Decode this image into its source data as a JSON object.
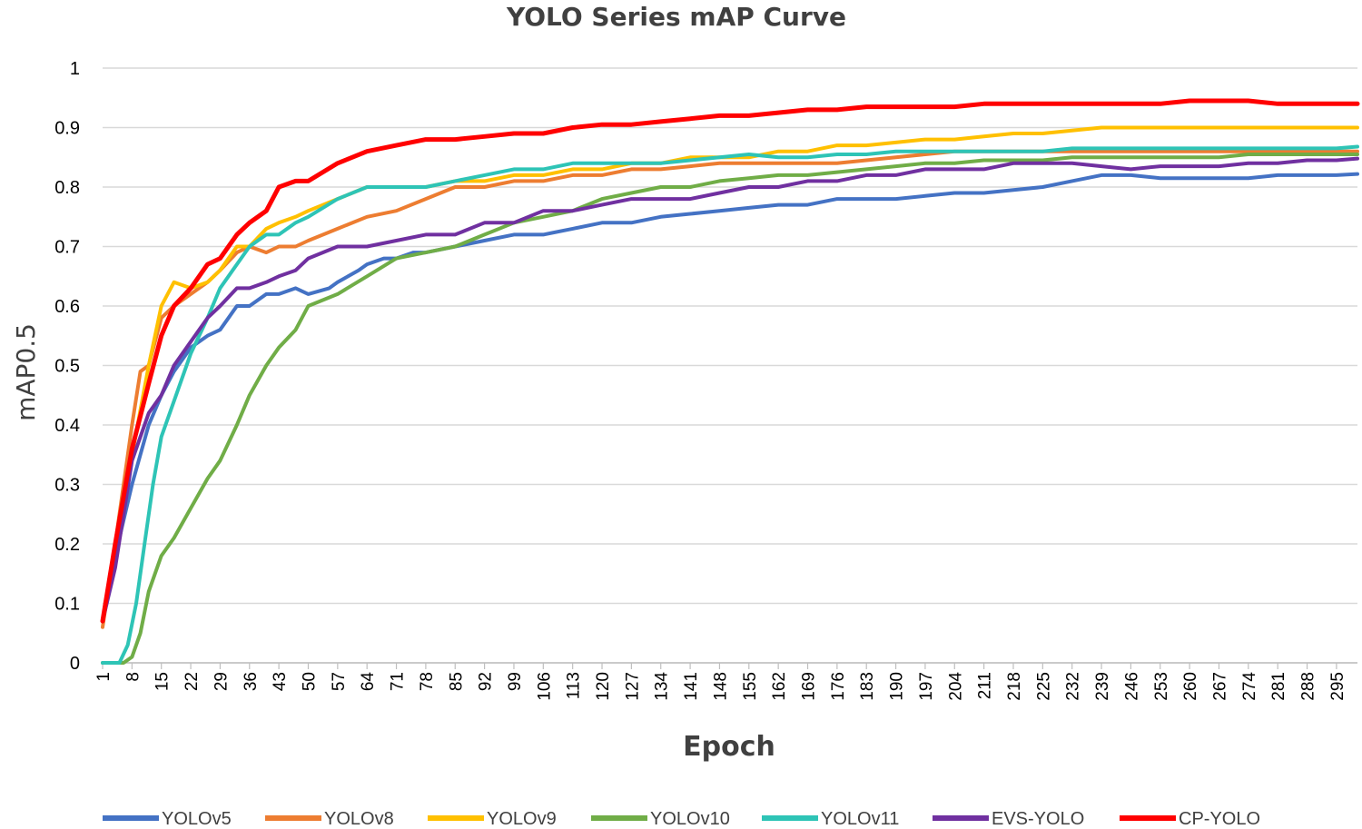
{
  "chart_data": {
    "type": "line",
    "title": "YOLO Series mAP Curve",
    "xlabel": "Epoch",
    "ylabel": "mAP0.5",
    "ylim": [
      0,
      1
    ],
    "xlim": [
      1,
      300
    ],
    "y_ticks": [
      "0",
      "0.1",
      "0.2",
      "0.3",
      "0.4",
      "0.5",
      "0.6",
      "0.7",
      "0.8",
      "0.9",
      "1"
    ],
    "x_ticks": [
      "1",
      "8",
      "15",
      "22",
      "29",
      "36",
      "43",
      "50",
      "57",
      "64",
      "71",
      "78",
      "85",
      "92",
      "99",
      "106",
      "113",
      "120",
      "127",
      "134",
      "141",
      "148",
      "155",
      "162",
      "169",
      "176",
      "183",
      "190",
      "197",
      "204",
      "211",
      "218",
      "225",
      "232",
      "239",
      "246",
      "253",
      "260",
      "267",
      "274",
      "281",
      "288",
      "295"
    ],
    "grid": "horizontal",
    "legend_position": "bottom",
    "series": [
      {
        "name": "YOLOv5",
        "color": "#4472C4",
        "x": [
          1,
          4,
          8,
          12,
          15,
          18,
          22,
          26,
          29,
          33,
          36,
          40,
          43,
          47,
          50,
          55,
          57,
          62,
          64,
          68,
          71,
          75,
          78,
          85,
          92,
          99,
          106,
          113,
          120,
          127,
          134,
          141,
          148,
          155,
          162,
          169,
          176,
          183,
          190,
          197,
          204,
          211,
          218,
          225,
          232,
          239,
          246,
          253,
          260,
          267,
          274,
          281,
          288,
          295,
          300
        ],
        "y": [
          0.07,
          0.18,
          0.3,
          0.4,
          0.45,
          0.49,
          0.53,
          0.55,
          0.56,
          0.6,
          0.6,
          0.62,
          0.62,
          0.63,
          0.62,
          0.63,
          0.64,
          0.66,
          0.67,
          0.68,
          0.68,
          0.69,
          0.69,
          0.7,
          0.71,
          0.72,
          0.72,
          0.73,
          0.74,
          0.74,
          0.75,
          0.755,
          0.76,
          0.765,
          0.77,
          0.77,
          0.78,
          0.78,
          0.78,
          0.785,
          0.79,
          0.79,
          0.795,
          0.8,
          0.81,
          0.82,
          0.82,
          0.815,
          0.815,
          0.815,
          0.815,
          0.82,
          0.82,
          0.82,
          0.822
        ]
      },
      {
        "name": "YOLOv8",
        "color": "#ED7D31",
        "x": [
          1,
          4,
          8,
          10,
          12,
          15,
          18,
          22,
          26,
          29,
          33,
          36,
          40,
          43,
          47,
          50,
          57,
          64,
          71,
          78,
          85,
          92,
          99,
          106,
          113,
          120,
          127,
          134,
          141,
          148,
          155,
          162,
          169,
          176,
          183,
          190,
          197,
          204,
          211,
          218,
          225,
          232,
          239,
          246,
          253,
          260,
          267,
          274,
          281,
          288,
          295,
          300
        ],
        "y": [
          0.06,
          0.2,
          0.4,
          0.49,
          0.5,
          0.58,
          0.6,
          0.62,
          0.64,
          0.66,
          0.69,
          0.7,
          0.69,
          0.7,
          0.7,
          0.71,
          0.73,
          0.75,
          0.76,
          0.78,
          0.8,
          0.8,
          0.81,
          0.81,
          0.82,
          0.82,
          0.83,
          0.83,
          0.835,
          0.84,
          0.84,
          0.84,
          0.84,
          0.84,
          0.845,
          0.85,
          0.855,
          0.86,
          0.86,
          0.86,
          0.86,
          0.86,
          0.86,
          0.86,
          0.86,
          0.86,
          0.86,
          0.86,
          0.86,
          0.86,
          0.86,
          0.86
        ]
      },
      {
        "name": "YOLOv9",
        "color": "#FFC000",
        "x": [
          1,
          4,
          8,
          12,
          15,
          18,
          22,
          26,
          29,
          33,
          36,
          40,
          43,
          47,
          50,
          57,
          64,
          71,
          78,
          85,
          92,
          99,
          106,
          113,
          120,
          127,
          134,
          141,
          148,
          155,
          162,
          169,
          176,
          183,
          190,
          197,
          204,
          211,
          218,
          225,
          232,
          239,
          246,
          253,
          260,
          267,
          274,
          281,
          288,
          295,
          300
        ],
        "y": [
          0.07,
          0.18,
          0.35,
          0.5,
          0.6,
          0.64,
          0.63,
          0.64,
          0.66,
          0.7,
          0.7,
          0.73,
          0.74,
          0.75,
          0.76,
          0.78,
          0.8,
          0.8,
          0.8,
          0.81,
          0.81,
          0.82,
          0.82,
          0.83,
          0.83,
          0.84,
          0.84,
          0.85,
          0.85,
          0.85,
          0.86,
          0.86,
          0.87,
          0.87,
          0.875,
          0.88,
          0.88,
          0.885,
          0.89,
          0.89,
          0.895,
          0.9,
          0.9,
          0.9,
          0.9,
          0.9,
          0.9,
          0.9,
          0.9,
          0.9,
          0.9
        ]
      },
      {
        "name": "YOLOv10",
        "color": "#70AD47",
        "x": [
          1,
          6,
          8,
          10,
          12,
          15,
          18,
          22,
          26,
          29,
          33,
          36,
          40,
          43,
          47,
          50,
          57,
          64,
          71,
          78,
          85,
          92,
          99,
          106,
          113,
          120,
          127,
          134,
          141,
          148,
          155,
          162,
          169,
          176,
          183,
          190,
          197,
          204,
          211,
          218,
          225,
          232,
          239,
          246,
          253,
          260,
          267,
          274,
          281,
          288,
          295,
          300
        ],
        "y": [
          0,
          0,
          0.01,
          0.05,
          0.12,
          0.18,
          0.21,
          0.26,
          0.31,
          0.34,
          0.4,
          0.45,
          0.5,
          0.53,
          0.56,
          0.6,
          0.62,
          0.65,
          0.68,
          0.69,
          0.7,
          0.72,
          0.74,
          0.75,
          0.76,
          0.78,
          0.79,
          0.8,
          0.8,
          0.81,
          0.815,
          0.82,
          0.82,
          0.825,
          0.83,
          0.835,
          0.84,
          0.84,
          0.845,
          0.845,
          0.845,
          0.85,
          0.85,
          0.85,
          0.85,
          0.85,
          0.85,
          0.855,
          0.855,
          0.855,
          0.855,
          0.855
        ]
      },
      {
        "name": "YOLOv11",
        "color": "#2EC4B6",
        "x": [
          1,
          5,
          7,
          9,
          11,
          13,
          15,
          18,
          22,
          26,
          29,
          33,
          36,
          40,
          43,
          47,
          50,
          57,
          64,
          71,
          78,
          85,
          92,
          99,
          106,
          113,
          120,
          127,
          134,
          141,
          148,
          155,
          162,
          169,
          176,
          183,
          190,
          197,
          204,
          211,
          218,
          225,
          232,
          239,
          246,
          253,
          260,
          267,
          274,
          281,
          288,
          295,
          300
        ],
        "y": [
          0,
          0,
          0.03,
          0.1,
          0.2,
          0.3,
          0.38,
          0.44,
          0.52,
          0.58,
          0.63,
          0.67,
          0.7,
          0.72,
          0.72,
          0.74,
          0.75,
          0.78,
          0.8,
          0.8,
          0.8,
          0.81,
          0.82,
          0.83,
          0.83,
          0.84,
          0.84,
          0.84,
          0.84,
          0.845,
          0.85,
          0.855,
          0.85,
          0.85,
          0.855,
          0.855,
          0.86,
          0.86,
          0.86,
          0.86,
          0.86,
          0.86,
          0.865,
          0.865,
          0.865,
          0.865,
          0.865,
          0.865,
          0.865,
          0.865,
          0.865,
          0.865,
          0.868
        ]
      },
      {
        "name": "EVS-YOLO",
        "color": "#7030A0",
        "x": [
          1,
          4,
          8,
          12,
          15,
          18,
          22,
          26,
          29,
          33,
          36,
          40,
          43,
          47,
          50,
          57,
          64,
          71,
          78,
          85,
          92,
          99,
          106,
          113,
          120,
          127,
          134,
          141,
          148,
          155,
          162,
          169,
          176,
          183,
          190,
          197,
          204,
          211,
          218,
          225,
          232,
          239,
          246,
          253,
          260,
          267,
          274,
          281,
          288,
          295,
          300
        ],
        "y": [
          0.07,
          0.16,
          0.34,
          0.42,
          0.45,
          0.5,
          0.54,
          0.58,
          0.6,
          0.63,
          0.63,
          0.64,
          0.65,
          0.66,
          0.68,
          0.7,
          0.7,
          0.71,
          0.72,
          0.72,
          0.74,
          0.74,
          0.76,
          0.76,
          0.77,
          0.78,
          0.78,
          0.78,
          0.79,
          0.8,
          0.8,
          0.81,
          0.81,
          0.82,
          0.82,
          0.83,
          0.83,
          0.83,
          0.84,
          0.84,
          0.84,
          0.835,
          0.83,
          0.835,
          0.835,
          0.835,
          0.84,
          0.84,
          0.845,
          0.845,
          0.848
        ]
      },
      {
        "name": "CP-YOLO",
        "color": "#FF0000",
        "x": [
          1,
          4,
          8,
          12,
          15,
          18,
          22,
          26,
          29,
          33,
          36,
          40,
          43,
          47,
          50,
          57,
          64,
          71,
          78,
          85,
          92,
          99,
          106,
          113,
          120,
          127,
          134,
          141,
          148,
          155,
          162,
          169,
          176,
          183,
          190,
          197,
          204,
          211,
          218,
          225,
          232,
          239,
          246,
          253,
          260,
          267,
          274,
          281,
          288,
          295,
          300
        ],
        "y": [
          0.07,
          0.2,
          0.36,
          0.47,
          0.55,
          0.6,
          0.63,
          0.67,
          0.68,
          0.72,
          0.74,
          0.76,
          0.8,
          0.81,
          0.81,
          0.84,
          0.86,
          0.87,
          0.88,
          0.88,
          0.885,
          0.89,
          0.89,
          0.9,
          0.905,
          0.905,
          0.91,
          0.915,
          0.92,
          0.92,
          0.925,
          0.93,
          0.93,
          0.935,
          0.935,
          0.935,
          0.935,
          0.94,
          0.94,
          0.94,
          0.94,
          0.94,
          0.94,
          0.94,
          0.945,
          0.945,
          0.945,
          0.94,
          0.94,
          0.94,
          0.94
        ]
      }
    ]
  }
}
